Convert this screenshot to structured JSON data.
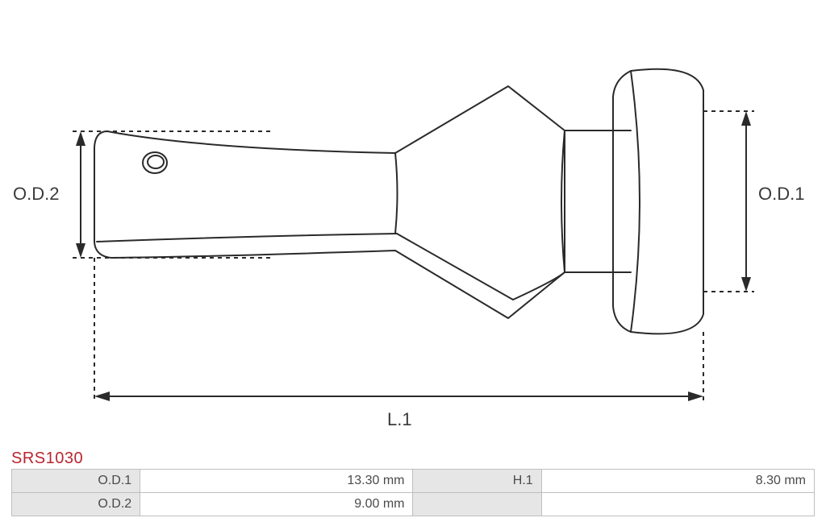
{
  "part_code": "SRS1030",
  "part_code_color": "#b9252f",
  "diagram": {
    "stroke": "#2a2a2a",
    "stroke_width": 2,
    "dim_stroke": "#2a2a2a",
    "label_color": "#3a3a3a",
    "label_fontsize": 22,
    "labels": {
      "od1": "O.D.1",
      "od2": "O.D.2",
      "l1": "L.1"
    }
  },
  "table": {
    "border_color": "#bfbfbf",
    "key_bg": "#e6e6e6",
    "val_bg": "#ffffff",
    "key_color": "#4a4a4a",
    "val_color": "#4a4a4a",
    "rows": [
      {
        "k1": "O.D.1",
        "v1": "13.30 mm",
        "k2": "H.1",
        "v2": "8.30 mm"
      },
      {
        "k1": "O.D.2",
        "v1": "9.00 mm",
        "k2": "",
        "v2": ""
      }
    ]
  }
}
